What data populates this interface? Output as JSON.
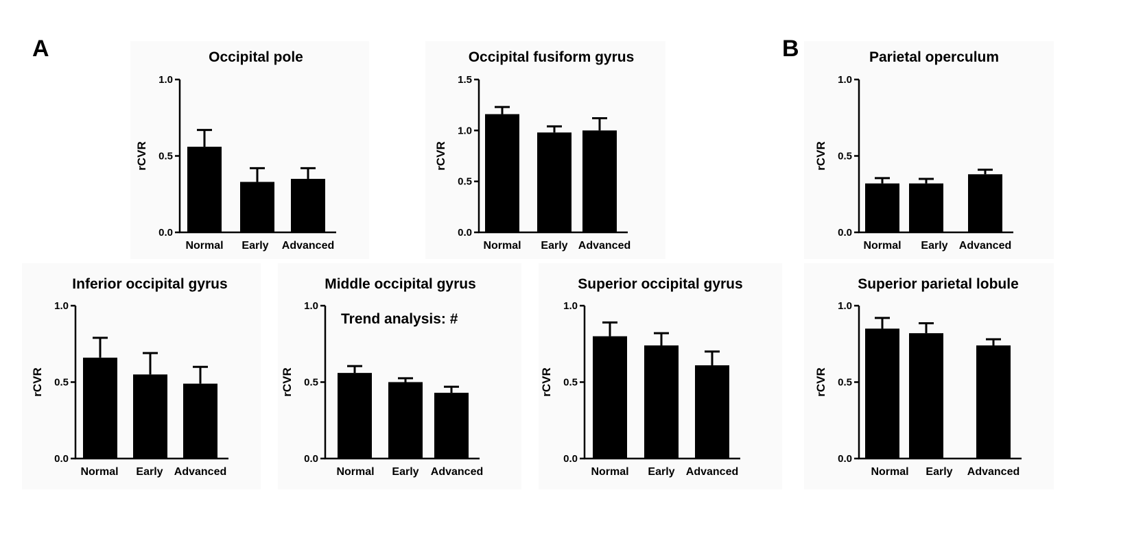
{
  "figure": {
    "panel_labels": [
      "A",
      "B"
    ]
  },
  "chart_data": [
    {
      "type": "bar",
      "panel": "A",
      "title": "Occipital pole",
      "ylabel": "rCVR",
      "xlabel": "",
      "categories": [
        "Normal",
        "Early",
        "Advanced"
      ],
      "values": [
        0.56,
        0.33,
        0.35
      ],
      "errors": [
        0.11,
        0.09,
        0.07
      ],
      "ylim": [
        0,
        1.0
      ],
      "yticks": [
        0.0,
        0.5,
        1.0
      ],
      "ytick_labels": [
        "0.0",
        "0.5",
        "1.0"
      ],
      "annotation": ""
    },
    {
      "type": "bar",
      "panel": "A",
      "title": "Occipital fusiform gyrus",
      "ylabel": "rCVR",
      "xlabel": "",
      "categories": [
        "Normal",
        "Early",
        "Advanced"
      ],
      "values": [
        1.16,
        0.98,
        1.0
      ],
      "errors": [
        0.07,
        0.06,
        0.12
      ],
      "ylim": [
        0,
        1.5
      ],
      "yticks": [
        0.0,
        0.5,
        1.0,
        1.5
      ],
      "ytick_labels": [
        "0.0",
        "0.5",
        "1.0",
        "1.5"
      ],
      "annotation": ""
    },
    {
      "type": "bar",
      "panel": "B",
      "title": "Parietal operculum",
      "ylabel": "rCVR",
      "xlabel": "",
      "categories": [
        "Normal",
        "Early",
        "Advanced"
      ],
      "values": [
        0.32,
        0.32,
        0.38
      ],
      "errors": [
        0.035,
        0.03,
        0.03
      ],
      "ylim": [
        0,
        1.0
      ],
      "yticks": [
        0.0,
        0.5,
        1.0
      ],
      "ytick_labels": [
        "0.0",
        "0.5",
        "1.0"
      ],
      "annotation": ""
    },
    {
      "type": "bar",
      "panel": "A",
      "title": "Inferior occipital gyrus",
      "ylabel": "rCVR",
      "xlabel": "",
      "categories": [
        "Normal",
        "Early",
        "Advanced"
      ],
      "values": [
        0.66,
        0.55,
        0.49
      ],
      "errors": [
        0.13,
        0.14,
        0.11
      ],
      "ylim": [
        0,
        1.0
      ],
      "yticks": [
        0.0,
        0.5,
        1.0
      ],
      "ytick_labels": [
        "0.0",
        "0.5",
        "1.0"
      ],
      "annotation": ""
    },
    {
      "type": "bar",
      "panel": "A",
      "title": "Middle occipital gyrus",
      "ylabel": "rCVR",
      "xlabel": "",
      "categories": [
        "Normal",
        "Early",
        "Advanced"
      ],
      "values": [
        0.56,
        0.5,
        0.43
      ],
      "errors": [
        0.045,
        0.025,
        0.04
      ],
      "ylim": [
        0,
        1.0
      ],
      "yticks": [
        0.0,
        0.5,
        1.0
      ],
      "ytick_labels": [
        "0.0",
        "0.5",
        "1.0"
      ],
      "annotation": "Trend analysis:  #"
    },
    {
      "type": "bar",
      "panel": "A",
      "title": "Superior occipital gyrus",
      "ylabel": "rCVR",
      "xlabel": "",
      "categories": [
        "Normal",
        "Early",
        "Advanced"
      ],
      "values": [
        0.8,
        0.74,
        0.61
      ],
      "errors": [
        0.09,
        0.08,
        0.09
      ],
      "ylim": [
        0,
        1.0
      ],
      "yticks": [
        0.0,
        0.5,
        1.0
      ],
      "ytick_labels": [
        "0.0",
        "0.5",
        "1.0"
      ],
      "annotation": ""
    },
    {
      "type": "bar",
      "panel": "B",
      "title": "Superior parietal lobule",
      "ylabel": "rCVR",
      "xlabel": "",
      "categories": [
        "Normal",
        "Early",
        "Advanced"
      ],
      "values": [
        0.85,
        0.82,
        0.74
      ],
      "errors": [
        0.07,
        0.065,
        0.04
      ],
      "ylim": [
        0,
        1.0
      ],
      "yticks": [
        0.0,
        0.5,
        1.0
      ],
      "ytick_labels": [
        "0.0",
        "0.5",
        "1.0"
      ],
      "annotation": ""
    }
  ]
}
